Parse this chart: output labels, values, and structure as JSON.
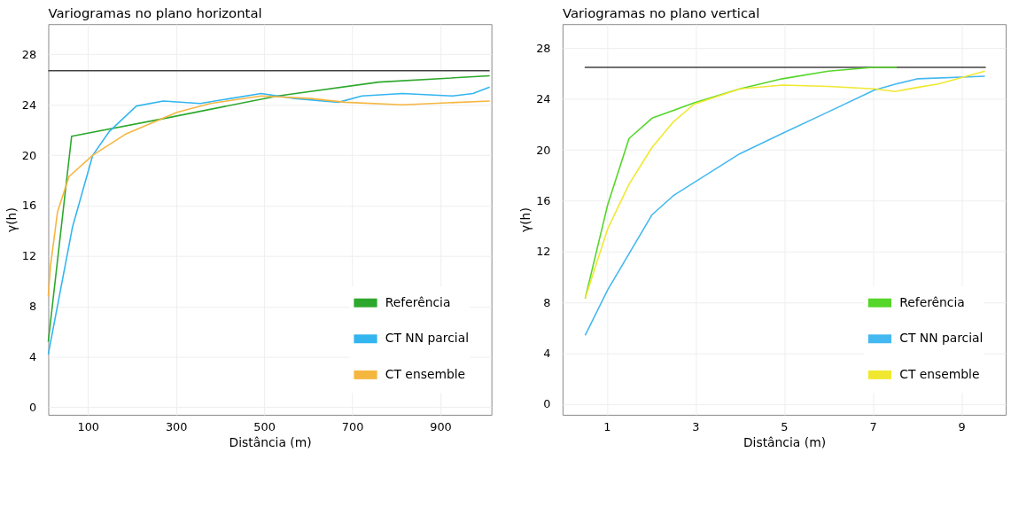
{
  "chart_data": [
    {
      "type": "line",
      "title": "Variogramas no plano horizontal",
      "xlabel": "Distância (m)",
      "ylabel": "γ(h)",
      "xlim": [
        10,
        1016
      ],
      "ylim": [
        -0.6,
        30.4
      ],
      "xticks": [
        100,
        300,
        500,
        700,
        900
      ],
      "yticks": [
        0,
        4,
        8,
        12,
        16,
        20,
        24,
        28
      ],
      "grid": true,
      "legend": "bottom right",
      "line_style": "solid",
      "marker": "none",
      "series": [
        {
          "color": "#404040",
          "x": [
            10,
            1012
          ],
          "values": [
            26.7,
            26.7
          ]
        },
        {
          "name": "Referência",
          "color": "#2ca82c",
          "x": [
            10,
            63,
            271,
            531,
            760,
            1012
          ],
          "values": [
            5.2,
            21.5,
            22.9,
            24.7,
            25.8,
            26.3
          ]
        },
        {
          "name": "CT NN parcial",
          "color": "#33b5f0",
          "x": [
            10,
            65,
            111,
            149,
            210,
            271,
            355,
            493,
            569,
            669,
            722,
            814,
            928,
            974,
            1012
          ],
          "values": [
            4.2,
            14.3,
            20.0,
            21.9,
            23.9,
            24.3,
            24.1,
            24.9,
            24.5,
            24.2,
            24.7,
            24.9,
            24.7,
            24.9,
            25.4
          ]
        },
        {
          "name": "CT ensemble",
          "color": "#f5b640",
          "x": [
            10,
            15,
            31,
            57,
            111,
            187,
            302,
            378,
            493,
            607,
            684,
            814,
            1012
          ],
          "values": [
            8.8,
            11.2,
            15.5,
            18.3,
            20.0,
            21.7,
            23.4,
            24.1,
            24.7,
            24.5,
            24.2,
            24.0,
            24.3
          ]
        }
      ]
    },
    {
      "type": "line",
      "title": "Variogramas no plano vertical",
      "xlabel": "Distância (m)",
      "ylabel": "γ(h)",
      "xlim": [
        0,
        10
      ],
      "ylim": [
        -0.85,
        29.9
      ],
      "xticks": [
        1,
        3,
        5,
        7,
        9
      ],
      "yticks": [
        0,
        4,
        8,
        12,
        16,
        20,
        24,
        28
      ],
      "grid": true,
      "legend": "bottom right",
      "line_style": "solid",
      "marker": "none",
      "series": [
        {
          "color": "#404040",
          "x": [
            0.5,
            9.55
          ],
          "values": [
            26.5,
            26.5
          ]
        },
        {
          "name": "Referência",
          "color": "#55d62a",
          "x": [
            0.51,
            1.02,
            1.5,
            2.02,
            2.97,
            4.0,
            4.96,
            6.0,
            7.0,
            7.54
          ],
          "values": [
            8.3,
            15.7,
            20.9,
            22.5,
            23.7,
            24.8,
            25.6,
            26.2,
            26.5,
            26.5
          ]
        },
        {
          "name": "CT NN parcial",
          "color": "#44b8f0",
          "x": [
            0.51,
            1.02,
            2.02,
            2.5,
            4.0,
            4.96,
            6.0,
            7.03,
            7.54,
            8.02,
            9.53
          ],
          "values": [
            5.4,
            9.0,
            14.9,
            16.4,
            19.7,
            21.3,
            23.0,
            24.7,
            25.2,
            25.6,
            25.8
          ]
        },
        {
          "name": "CT ensemble",
          "color": "#f0e830",
          "x": [
            0.51,
            1.02,
            1.5,
            2.02,
            2.5,
            2.97,
            4.0,
            4.96,
            6.0,
            7.03,
            7.5,
            7.98,
            8.5,
            9.53
          ],
          "values": [
            8.3,
            13.8,
            17.3,
            20.2,
            22.2,
            23.6,
            24.8,
            25.1,
            25.0,
            24.8,
            24.6,
            24.9,
            25.2,
            26.2
          ]
        }
      ]
    }
  ]
}
